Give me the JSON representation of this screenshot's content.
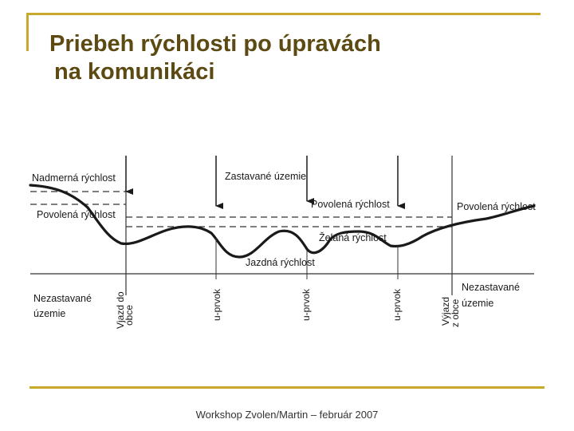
{
  "slide": {
    "title_line1": "Priebeh rýchlosti po úpravách",
    "title_line2": "na komunikáci",
    "footer": "Workshop Zvolen/Martin – február 2007",
    "accent_color": "#c9a92b",
    "title_color": "#5c4a12"
  },
  "diagram": {
    "labels": {
      "nadmerna_rychlost": "Nadmerná rýchlost",
      "povolena_rychlost_left": "Povolená rýchlost",
      "zastavane_uzemie": "Zastavané územie",
      "povolena_rychlost_mid": "Povolená rýchlost",
      "povolena_rychlost_right": "Povolená rýchlost",
      "zelana_rychlost": "Želaná rýchlost",
      "jazdna_rychlost": "Jazdná rýchlost",
      "nezastavane_left_1": "Nezastavané",
      "nezastavane_left_2": "územie",
      "nezastavane_right_1": "Nezastavané",
      "nezastavane_right_2": "územie",
      "vjazd_1": "Vjazd do",
      "vjazd_2": "obce",
      "uprvok_1": "u-prvok",
      "uprvok_2": "u-prvok",
      "uprvok_3": "u-prvok",
      "vyjazd_1": "Výjazd",
      "vyjazd_2": "z obce"
    }
  }
}
